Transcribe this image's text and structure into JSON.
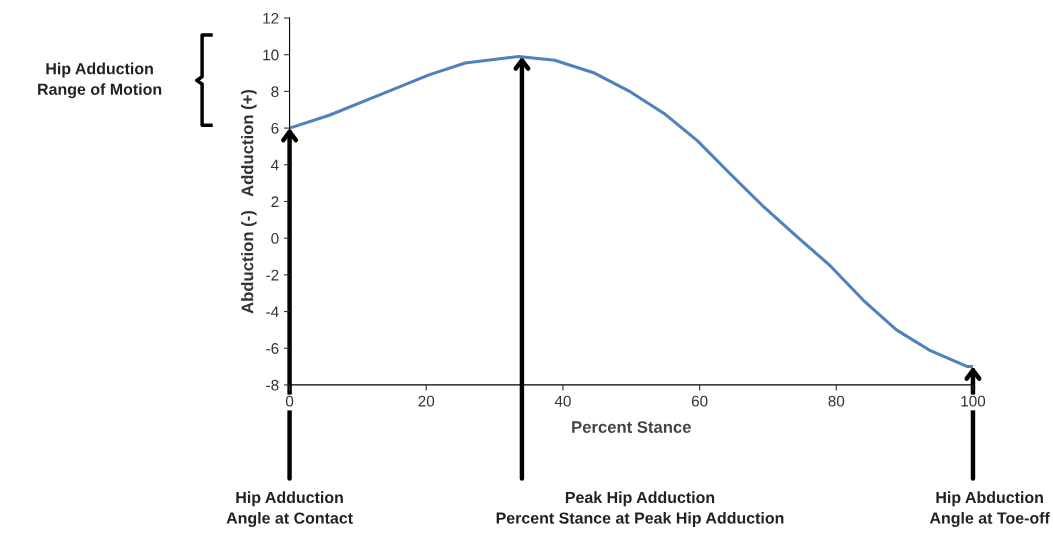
{
  "chart_data": {
    "type": "line",
    "xlabel": "Percent Stance",
    "ylabel": "Abduction (-)   Adduction (+)",
    "xlim": [
      0,
      100
    ],
    "xticks": [
      0,
      20,
      40,
      60,
      80,
      100
    ],
    "ylim": [
      -8,
      12
    ],
    "yticks": [
      -8,
      -6,
      -4,
      -2,
      0,
      2,
      4,
      6,
      8,
      10,
      12
    ],
    "grid": false,
    "legend": false,
    "marker": "none",
    "line_style": "solid",
    "series": [
      {
        "color": "#4f81bd",
        "x": [
          0,
          5.8,
          13.1,
          20.4,
          25.7,
          33.5,
          38.8,
          44.6,
          49.9,
          54.8,
          59.7,
          64.5,
          69.4,
          74.2,
          79.1,
          84.0,
          88.8,
          93.6,
          99.2,
          100
        ],
        "values": [
          6,
          6.7,
          7.8,
          8.9,
          9.55,
          9.9,
          9.7,
          9.0,
          7.97,
          6.8,
          5.3,
          3.5,
          1.7,
          0.1,
          -1.5,
          -3.4,
          -5.0,
          -6.1,
          -7.0,
          -7.0
        ]
      }
    ],
    "annotations": [
      "Hip Adduction\nRange of Motion",
      {
        "text": "Hip Adduction\nAngle at Contact",
        "x": 0,
        "y": 6
      },
      {
        "text": "Peak Hip Adduction\nPercent Stance at Peak Hip Adduction",
        "x": 34,
        "y": 9.9
      },
      {
        "text": "Hip Abduction\nAngle at Toe-off",
        "x": 100,
        "y": -7
      }
    ]
  }
}
